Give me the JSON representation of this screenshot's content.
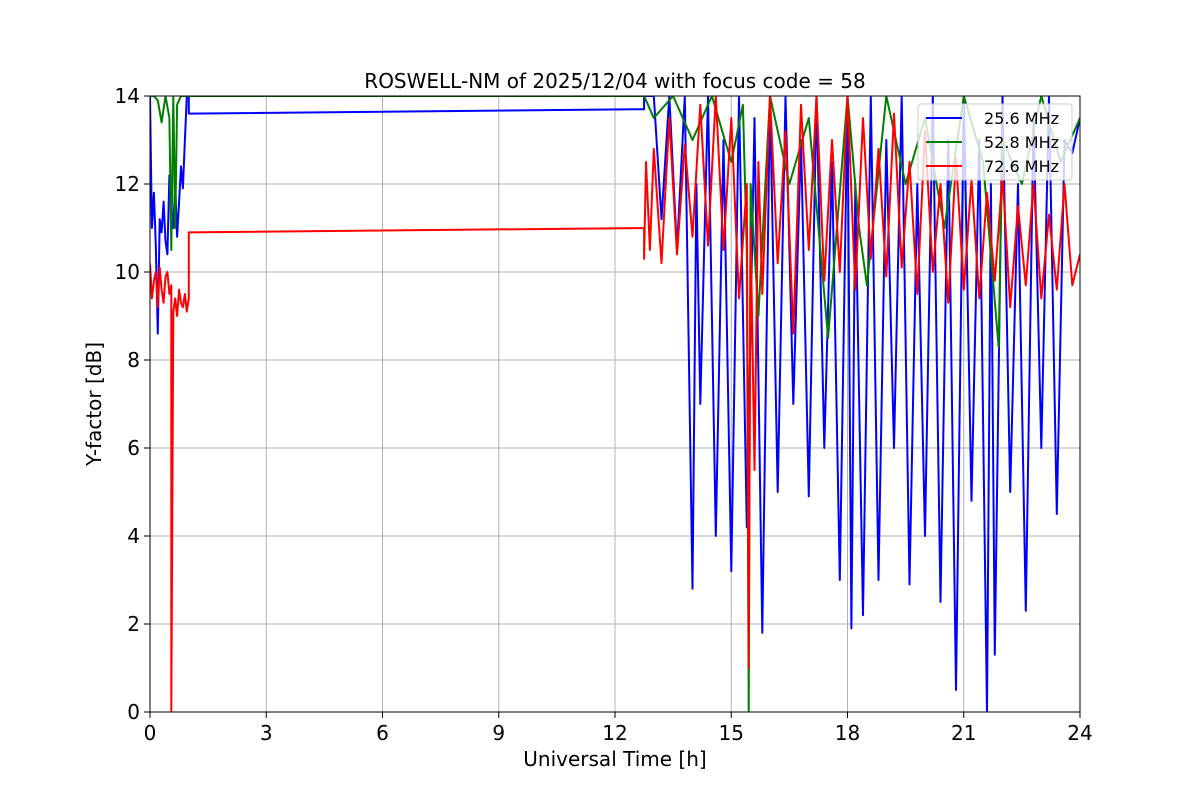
{
  "chart_data": {
    "type": "line",
    "title": "ROSWELL-NM of 2025/12/04 with focus code = 58",
    "xlabel": "Universal Time [h]",
    "ylabel": "Y-factor [dB]",
    "xlim": [
      0,
      24
    ],
    "ylim": [
      0,
      14
    ],
    "xticks": [
      0,
      3,
      6,
      9,
      12,
      15,
      18,
      21,
      24
    ],
    "yticks": [
      0,
      2,
      4,
      6,
      8,
      10,
      12,
      14
    ],
    "xtick_labels": [
      "0",
      "3",
      "6",
      "9",
      "12",
      "15",
      "18",
      "21",
      "24"
    ],
    "ytick_labels": [
      "0",
      "2",
      "4",
      "6",
      "8",
      "10",
      "12",
      "14"
    ],
    "grid": true,
    "legend_position": "top-right",
    "series": [
      {
        "name": "25.6 MHz",
        "color": "#0000ff",
        "x": [
          0.0,
          0.05,
          0.1,
          0.15,
          0.2,
          0.25,
          0.3,
          0.35,
          0.4,
          0.45,
          0.5,
          0.55,
          0.6,
          0.65,
          0.7,
          0.75,
          0.8,
          0.85,
          0.9,
          0.95,
          1.0,
          1.0,
          12.75,
          12.75,
          13.0,
          13.2,
          13.4,
          13.6,
          13.8,
          14.0,
          14.1,
          14.2,
          14.4,
          14.6,
          14.8,
          15.0,
          15.2,
          15.4,
          15.6,
          15.8,
          16.0,
          16.2,
          16.4,
          16.6,
          16.8,
          17.0,
          17.2,
          17.4,
          17.6,
          17.8,
          18.0,
          18.1,
          18.2,
          18.4,
          18.6,
          18.8,
          19.0,
          19.2,
          19.4,
          19.6,
          19.8,
          20.0,
          20.2,
          20.4,
          20.6,
          20.8,
          21.0,
          21.2,
          21.4,
          21.6,
          21.7,
          21.8,
          22.0,
          22.2,
          22.4,
          22.6,
          22.8,
          23.0,
          23.2,
          23.4,
          23.6,
          23.8,
          24.0
        ],
        "y": [
          14.0,
          11.0,
          11.8,
          10.6,
          8.6,
          11.2,
          10.9,
          11.6,
          10.7,
          10.4,
          12.2,
          11.5,
          11.0,
          12.0,
          10.8,
          11.6,
          12.4,
          11.9,
          13.0,
          14.0,
          14.0,
          13.6,
          13.7,
          14.0,
          14.0,
          11.2,
          14.0,
          10.5,
          14.0,
          2.8,
          12.0,
          7.0,
          14.0,
          4.0,
          13.0,
          3.2,
          14.0,
          4.2,
          13.5,
          1.8,
          14.0,
          5.0,
          14.0,
          7.0,
          13.0,
          4.9,
          14.0,
          6.0,
          12.5,
          3.0,
          14.0,
          1.9,
          12.0,
          2.2,
          14.0,
          3.0,
          13.0,
          6.0,
          14.0,
          2.9,
          12.0,
          4.0,
          14.0,
          2.5,
          13.0,
          0.5,
          14.0,
          4.8,
          13.0,
          0.0,
          12.0,
          1.3,
          14.0,
          5.0,
          12.0,
          2.3,
          13.5,
          6.0,
          14.0,
          4.5,
          13.0,
          12.7,
          13.5
        ]
      },
      {
        "name": "52.8 MHz",
        "color": "#008000",
        "x": [
          0.0,
          0.1,
          0.2,
          0.3,
          0.4,
          0.5,
          0.55,
          0.6,
          0.65,
          0.7,
          0.8,
          0.9,
          1.0,
          12.75,
          13.0,
          13.5,
          14.0,
          14.5,
          15.0,
          15.3,
          15.4,
          15.45,
          15.5,
          15.7,
          16.0,
          16.5,
          17.0,
          17.5,
          18.0,
          18.3,
          18.5,
          19.0,
          19.5,
          20.0,
          20.5,
          21.0,
          21.5,
          21.9,
          22.0,
          22.5,
          23.0,
          23.5,
          24.0
        ],
        "y": [
          14.0,
          14.0,
          13.9,
          13.4,
          14.0,
          13.5,
          10.5,
          14.0,
          11.0,
          13.8,
          14.0,
          14.0,
          14.0,
          14.0,
          13.5,
          14.0,
          13.0,
          14.0,
          12.5,
          13.8,
          10.5,
          0.0,
          12.0,
          9.0,
          14.0,
          12.0,
          13.5,
          8.5,
          14.0,
          11.0,
          9.7,
          14.0,
          12.0,
          13.5,
          11.0,
          14.0,
          12.5,
          8.3,
          13.0,
          12.0,
          14.0,
          12.5,
          13.5
        ]
      },
      {
        "name": "72.6 MHz",
        "color": "#ff0000",
        "x": [
          0.0,
          0.05,
          0.1,
          0.15,
          0.2,
          0.25,
          0.3,
          0.35,
          0.4,
          0.45,
          0.5,
          0.55,
          0.55,
          0.6,
          0.65,
          0.7,
          0.75,
          0.8,
          0.85,
          0.9,
          0.95,
          1.0,
          1.0,
          12.75,
          12.75,
          12.8,
          12.9,
          13.0,
          13.2,
          13.4,
          13.6,
          13.8,
          14.0,
          14.2,
          14.4,
          14.6,
          14.8,
          15.0,
          15.2,
          15.4,
          15.45,
          15.5,
          15.6,
          15.7,
          15.8,
          16.0,
          16.2,
          16.4,
          16.6,
          16.8,
          17.0,
          17.2,
          17.4,
          17.6,
          17.8,
          18.0,
          18.2,
          18.4,
          18.6,
          18.8,
          19.0,
          19.2,
          19.4,
          19.6,
          19.8,
          20.0,
          20.2,
          20.4,
          20.6,
          20.8,
          21.0,
          21.2,
          21.4,
          21.6,
          21.8,
          22.0,
          22.2,
          22.4,
          22.6,
          22.8,
          23.0,
          23.2,
          23.4,
          23.6,
          23.8,
          24.0
        ],
        "y": [
          10.2,
          9.4,
          9.8,
          10.0,
          9.2,
          10.1,
          9.6,
          9.3,
          9.9,
          10.0,
          9.5,
          9.7,
          0.0,
          9.1,
          9.4,
          9.0,
          9.6,
          9.3,
          9.2,
          9.5,
          9.1,
          9.4,
          10.9,
          11.0,
          10.3,
          12.5,
          10.5,
          12.8,
          10.2,
          13.5,
          10.4,
          12.9,
          10.8,
          13.8,
          10.6,
          14.0,
          10.5,
          13.5,
          9.4,
          12.0,
          1.0,
          11.0,
          5.5,
          12.5,
          9.5,
          14.0,
          10.2,
          13.2,
          8.6,
          13.8,
          10.5,
          14.0,
          9.8,
          13.0,
          10.0,
          14.0,
          9.6,
          13.5,
          10.3,
          12.8,
          9.9,
          13.6,
          10.1,
          12.5,
          9.5,
          13.2,
          10.0,
          12.0,
          9.3,
          12.6,
          9.6,
          12.1,
          9.4,
          11.8,
          9.8,
          12.2,
          9.2,
          11.5,
          9.7,
          12.0,
          9.4,
          11.3,
          9.6,
          12.0,
          9.7,
          10.4
        ]
      }
    ]
  }
}
